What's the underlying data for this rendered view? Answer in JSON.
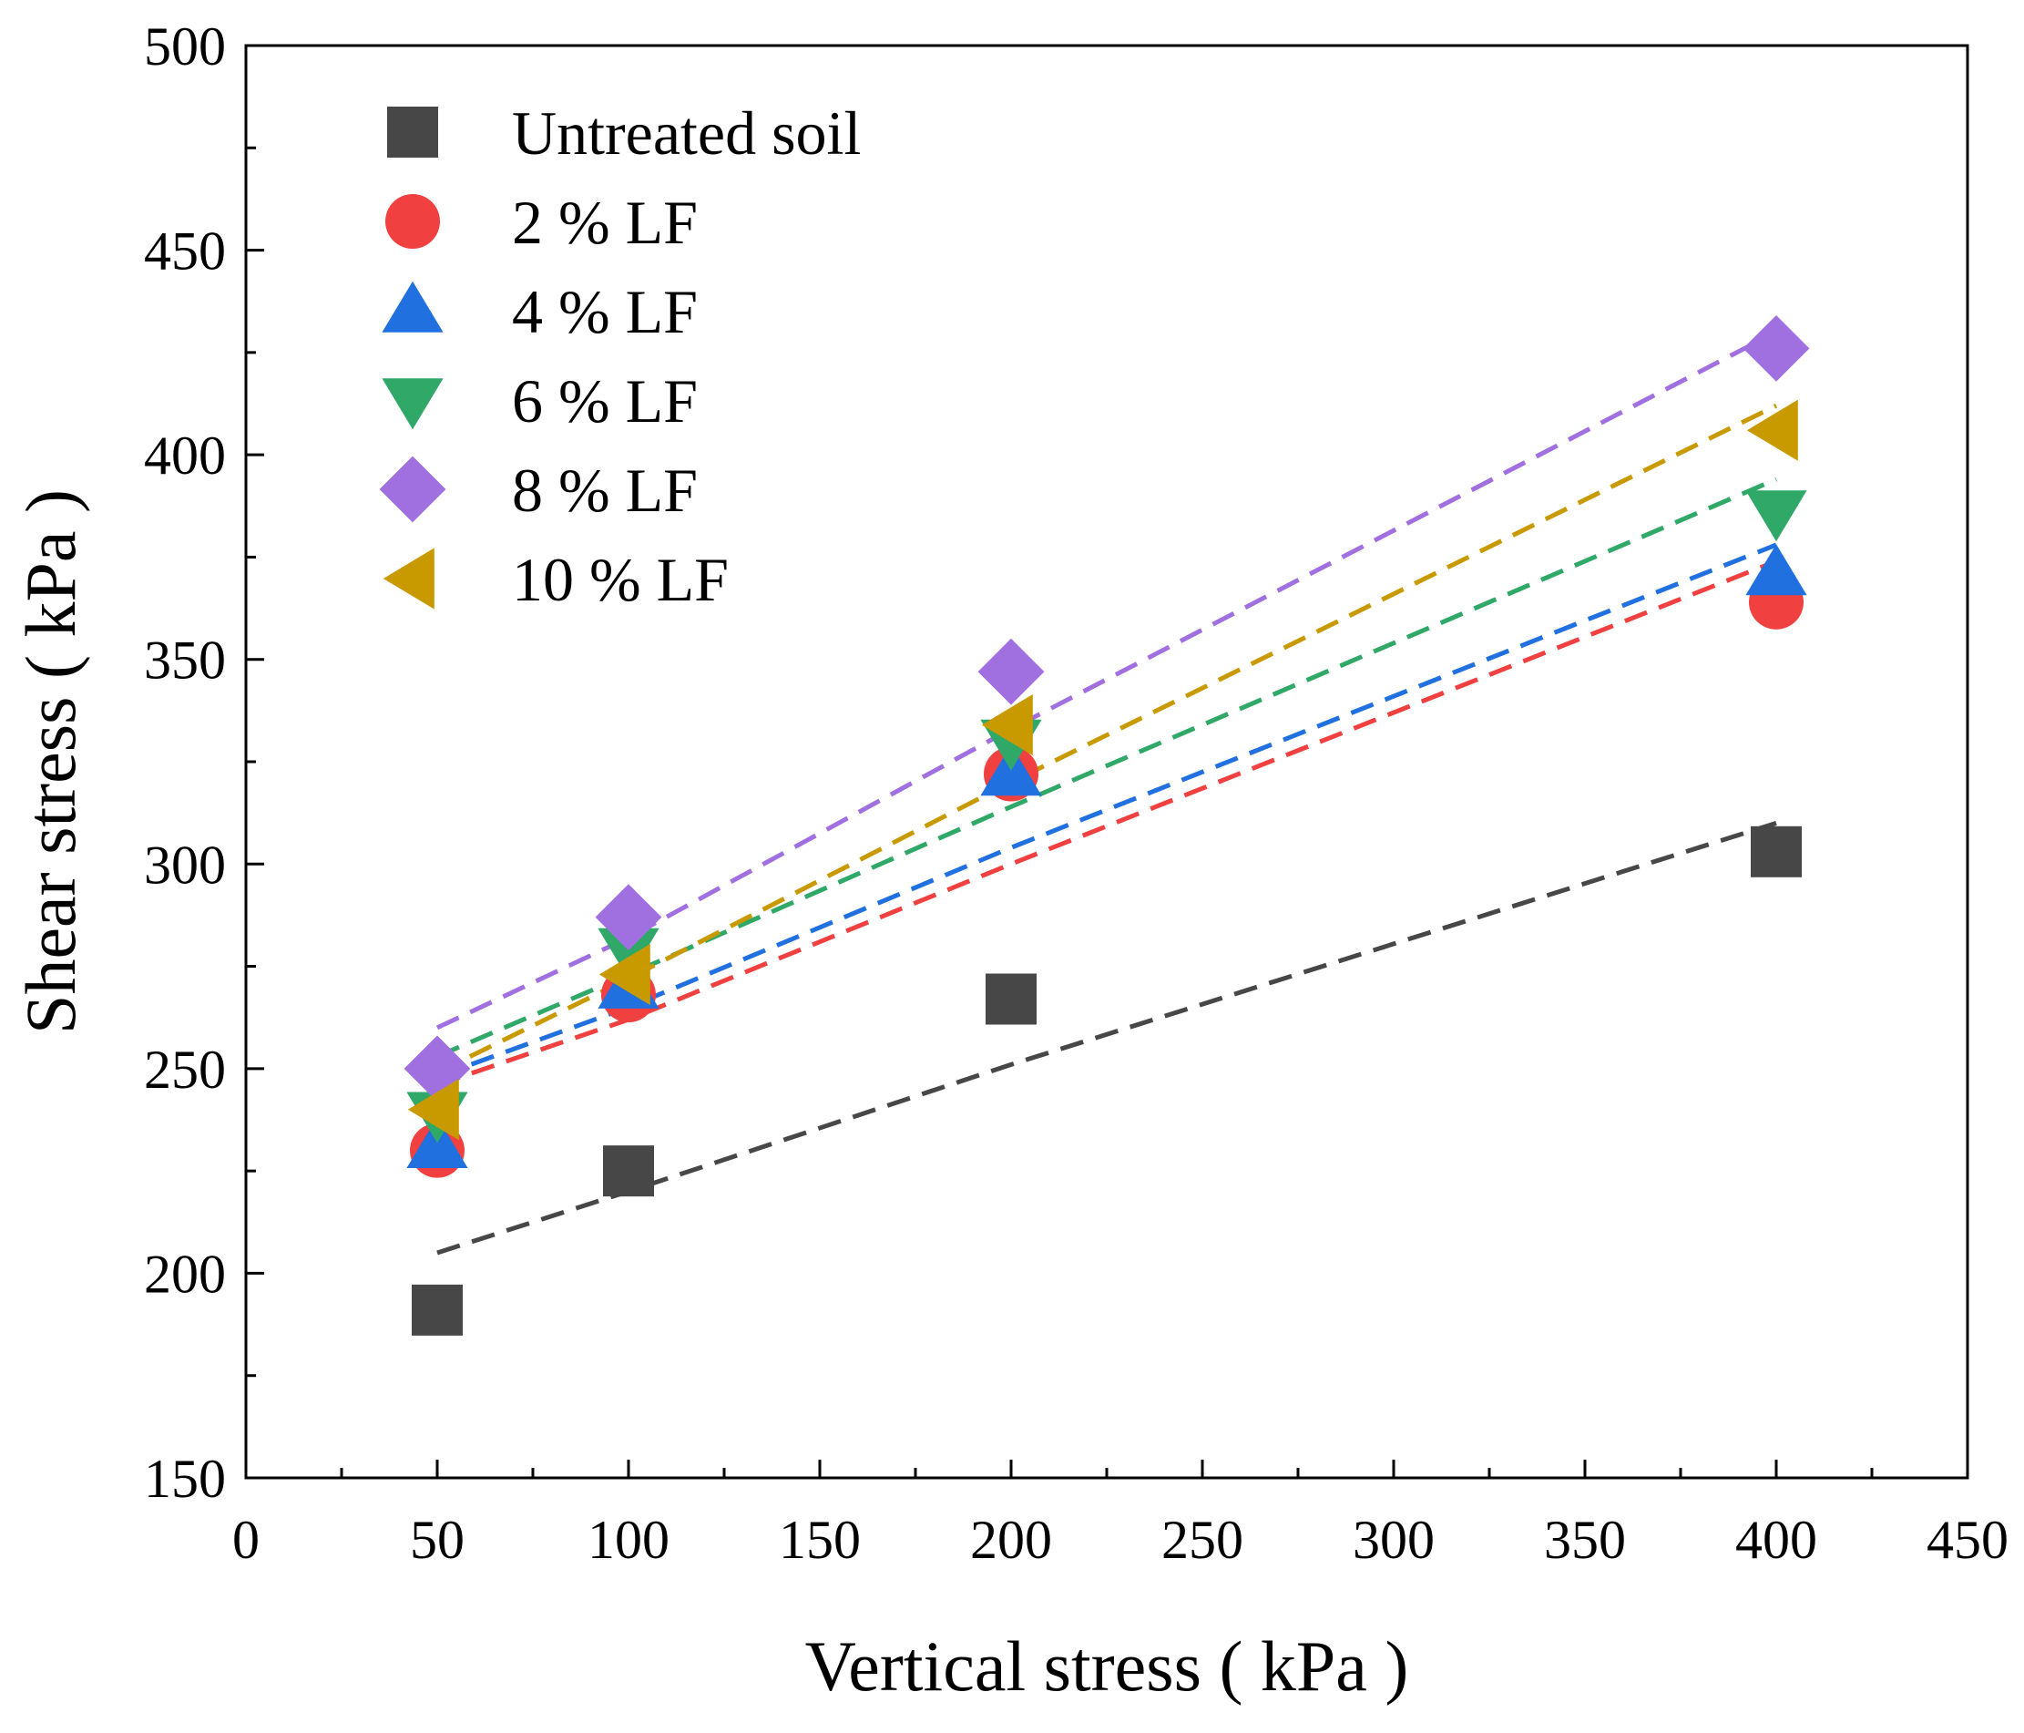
{
  "chart_data": {
    "type": "scatter",
    "title": "",
    "xlabel": "Vertical stress ( kPa )",
    "ylabel": "Shear stress ( kPa )",
    "xlim": [
      0,
      450
    ],
    "ylim": [
      150,
      500
    ],
    "xticks": [
      0,
      50,
      100,
      150,
      200,
      250,
      300,
      350,
      400,
      450
    ],
    "yticks": [
      150,
      200,
      250,
      300,
      350,
      400,
      450,
      500
    ],
    "legend_position": "top-left",
    "x": [
      50,
      100,
      200,
      400
    ],
    "series": [
      {
        "name": "Untreated soil",
        "marker": "square",
        "color": "#474747",
        "values": [
          191,
          225,
          267,
          303
        ],
        "fit": [
          205,
          220,
          251,
          310
        ]
      },
      {
        "name": "2 %  LF",
        "marker": "circle",
        "color": "#f04040",
        "values": [
          230,
          268,
          322,
          364
        ],
        "fit": [
          246,
          262,
          300,
          374
        ]
      },
      {
        "name": "4 %  LF",
        "marker": "triangle-up",
        "color": "#2070e0",
        "values": [
          231,
          270,
          322,
          371
        ],
        "fit": [
          248,
          265,
          304,
          378
        ]
      },
      {
        "name": "6 %  LF",
        "marker": "triangle-down",
        "color": "#30a868",
        "values": [
          239,
          279,
          330,
          386
        ],
        "fit": [
          253,
          273,
          314,
          394
        ]
      },
      {
        "name": "8 %  LF",
        "marker": "diamond",
        "color": "#a070e0",
        "values": [
          250,
          287,
          347,
          426
        ],
        "fit": [
          260,
          282,
          333,
          430
        ]
      },
      {
        "name": "10 %  LF",
        "marker": "triangle-left",
        "color": "#c89a00",
        "values": [
          240,
          273,
          334,
          406
        ],
        "fit": [
          249,
          272,
          320,
          412
        ]
      }
    ]
  }
}
